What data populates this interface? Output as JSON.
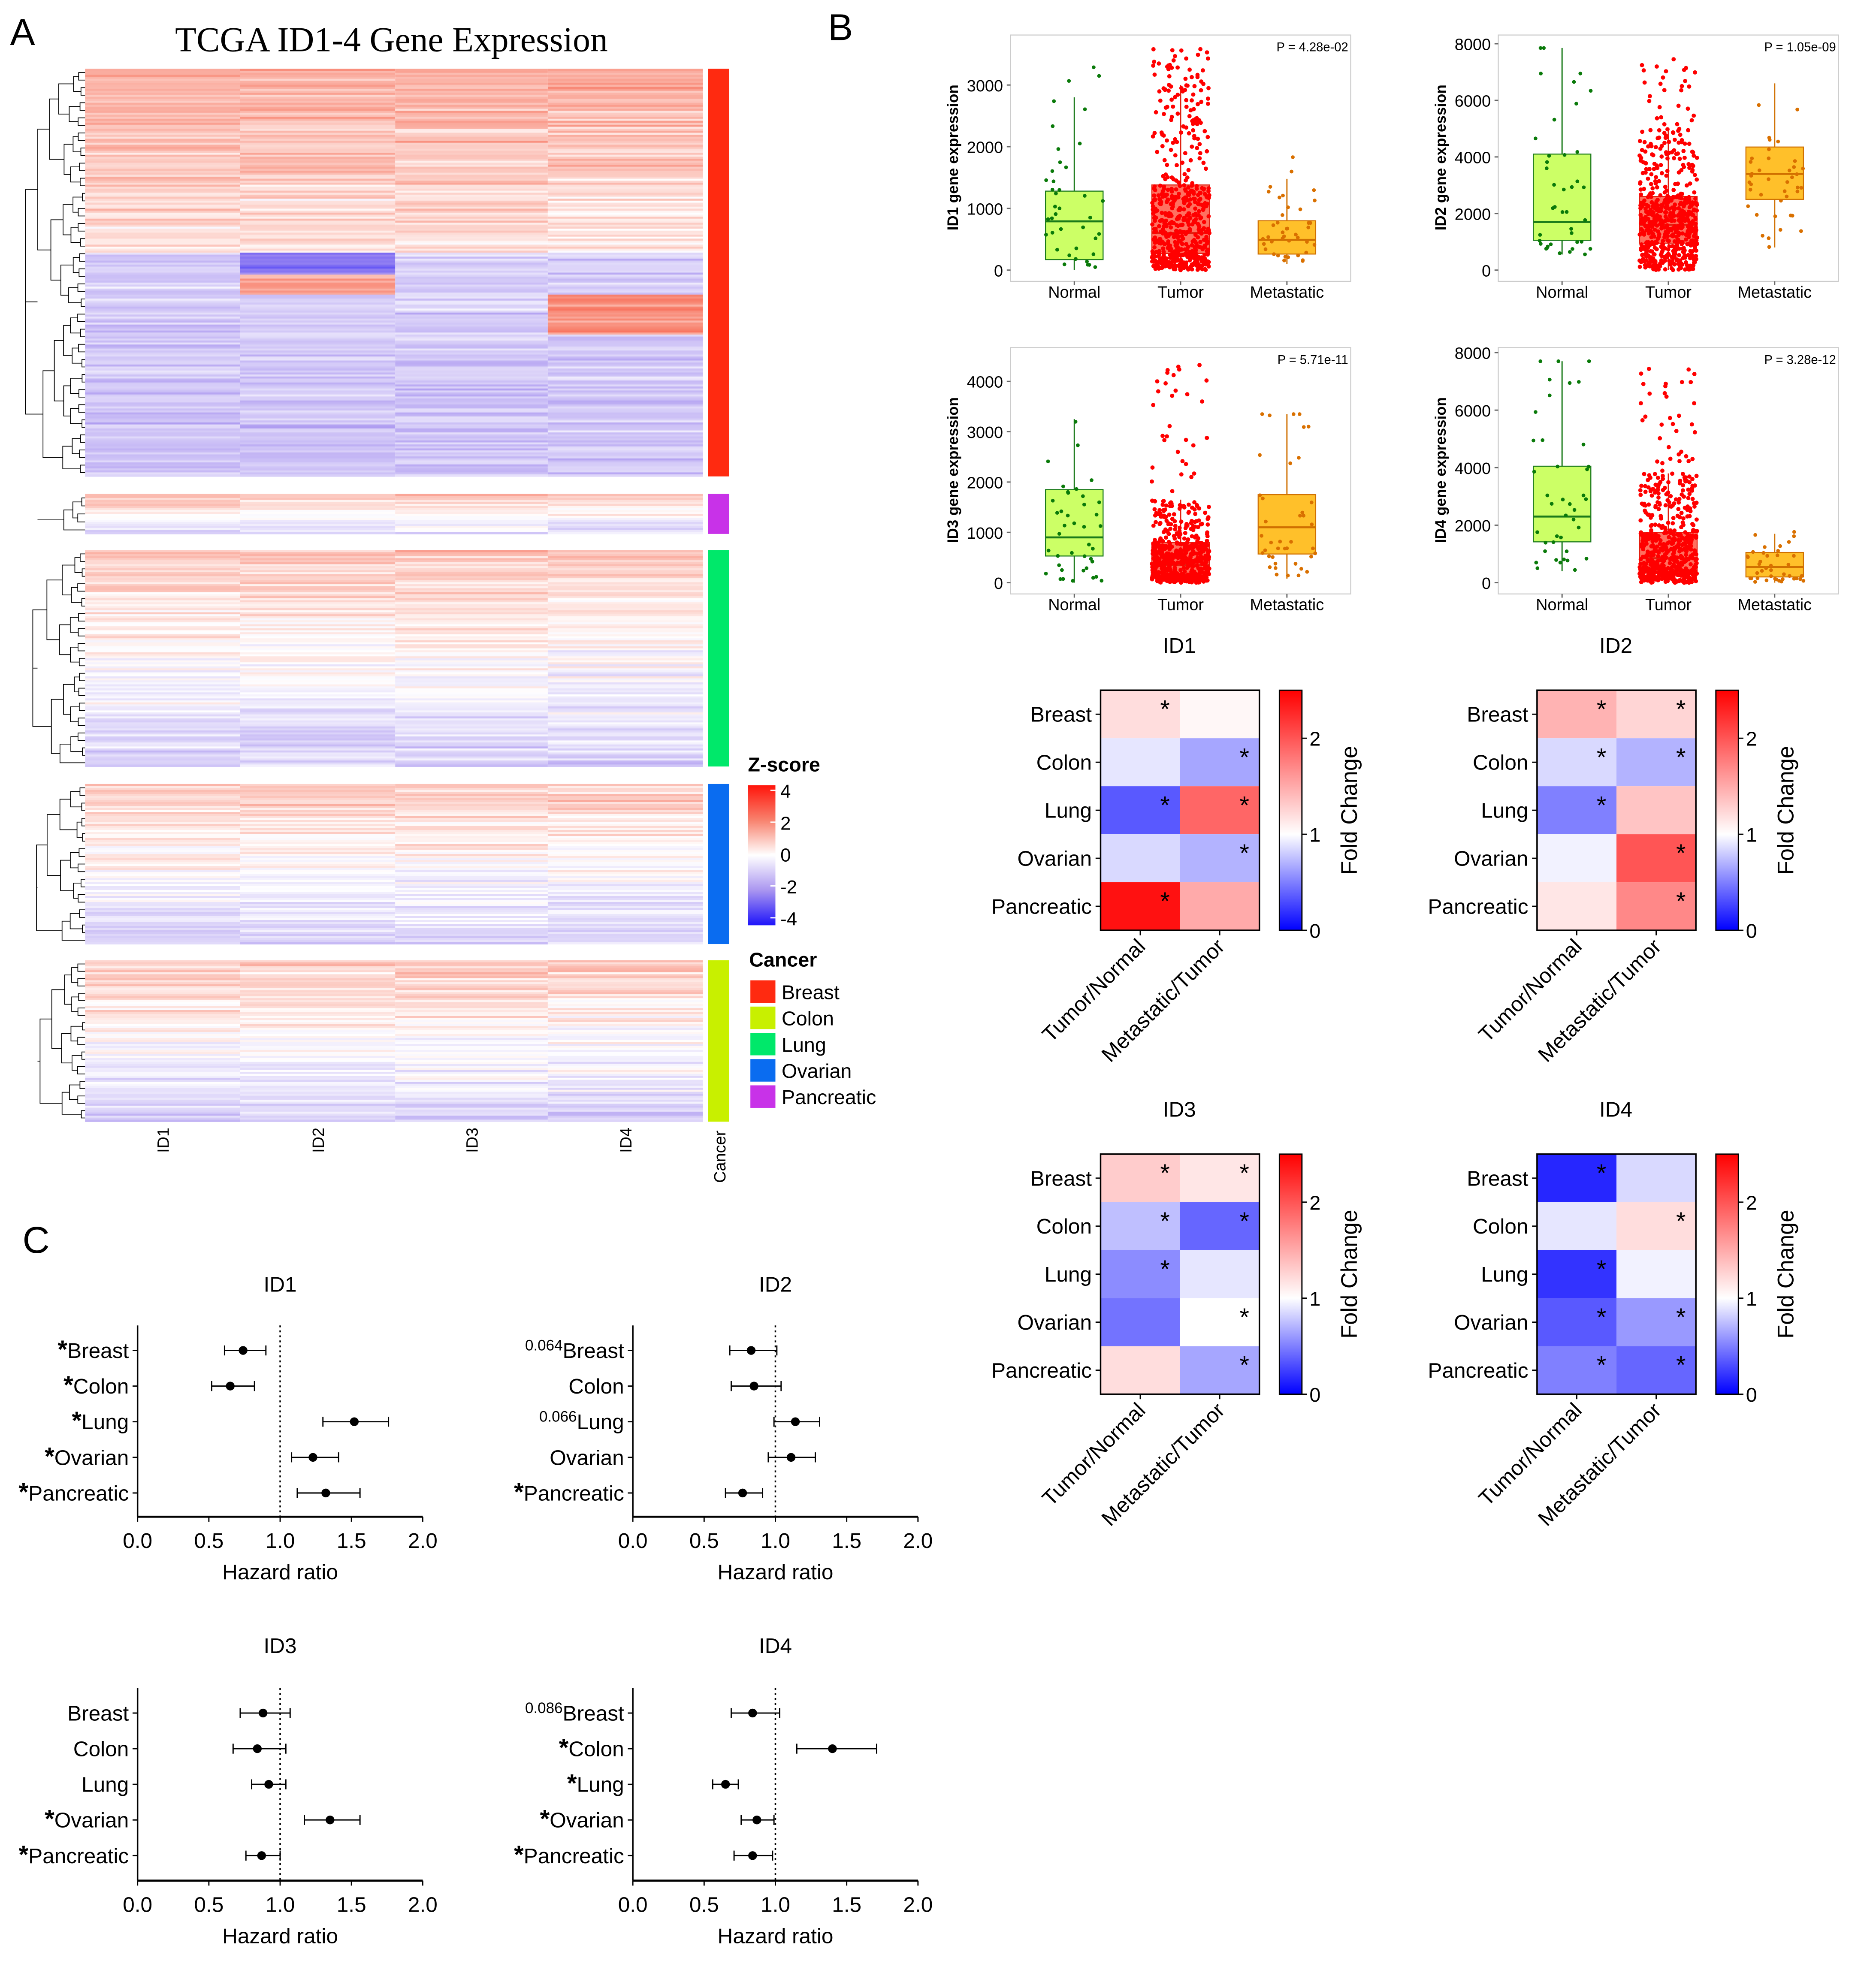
{
  "panel_letters": [
    "A",
    "B",
    "C"
  ],
  "colors": {
    "Breast": "#ff2a10",
    "Colon": "#c8f000",
    "Lung": "#00e86a",
    "Ovarian": "#0a6cf0",
    "Pancreatic": "#c832e8",
    "normal_box": "#ccff66",
    "normal_pt": "#0a7a0a",
    "tumor_box": "#ff7060",
    "tumor_pt": "#ff0000",
    "met_box": "#ffc02a",
    "met_pt": "#d97000",
    "fc_low": "#0000ff",
    "fc_mid": "#ffffff",
    "fc_high": "#ff0000"
  },
  "chart_data": [
    {
      "id": "A",
      "type": "heatmap",
      "title": "TCGA ID1-4  Gene Expression",
      "columns": [
        "ID1",
        "ID2",
        "ID3",
        "ID4"
      ],
      "annotation_label": "Cancer",
      "groups_in_order": [
        "Breast",
        "Pancreatic",
        "Lung",
        "Ovarian",
        "Colon"
      ],
      "legend_zscore": {
        "title": "Z-score",
        "ticks": [
          4,
          2,
          0,
          -2,
          -4
        ],
        "range": [
          -4,
          4
        ]
      },
      "legend_cancer": {
        "title": "Cancer",
        "items": [
          "Breast",
          "Colon",
          "Lung",
          "Ovarian",
          "Pancreatic"
        ]
      }
    },
    {
      "id": "B-box",
      "type": "box",
      "categories": [
        "Normal",
        "Tumor",
        "Metastatic"
      ],
      "panels": [
        {
          "gene": "ID1",
          "ylabel": "ID1 gene expression",
          "p": "P = 4.28e-02",
          "yticks": [
            0,
            1000,
            2000,
            3000
          ],
          "stats": [
            {
              "q1": 170,
              "median": 790,
              "q3": 1280,
              "lo": 0,
              "hi": 2800,
              "n": 40,
              "max": 3400
            },
            {
              "q1": 270,
              "median": 600,
              "q3": 1380,
              "lo": 0,
              "hi": 3000,
              "n": 600,
              "max": 3600
            },
            {
              "q1": 260,
              "median": 490,
              "q3": 800,
              "lo": 100,
              "hi": 1480,
              "n": 40,
              "max": 2100
            }
          ]
        },
        {
          "gene": "ID2",
          "ylabel": "ID2 gene expression",
          "p": "P = 1.05e-09",
          "yticks": [
            0,
            2000,
            4000,
            6000,
            8000
          ],
          "stats": [
            {
              "q1": 1050,
              "median": 1700,
              "q3": 4100,
              "lo": 550,
              "hi": 7850,
              "n": 40,
              "max": 7850
            },
            {
              "q1": 950,
              "median": 1600,
              "q3": 2600,
              "lo": 0,
              "hi": 5000,
              "n": 600,
              "max": 7500
            },
            {
              "q1": 2500,
              "median": 3400,
              "q3": 4350,
              "lo": 800,
              "hi": 6600,
              "n": 40,
              "max": 6600
            }
          ]
        },
        {
          "gene": "ID3",
          "ylabel": "ID3 gene expression",
          "p": "P = 5.71e-11",
          "yticks": [
            0,
            1000,
            2000,
            3000,
            4000
          ],
          "stats": [
            {
              "q1": 530,
              "median": 900,
              "q3": 1850,
              "lo": 0,
              "hi": 3250,
              "n": 40,
              "max": 4100
            },
            {
              "q1": 170,
              "median": 350,
              "q3": 800,
              "lo": 0,
              "hi": 1650,
              "n": 600,
              "max": 4350
            },
            {
              "q1": 570,
              "median": 1100,
              "q3": 1750,
              "lo": 80,
              "hi": 3350,
              "n": 40,
              "max": 3350
            }
          ]
        },
        {
          "gene": "ID4",
          "ylabel": "ID4 gene expression",
          "p": "P = 3.28e-12",
          "yticks": [
            0,
            2000,
            4000,
            6000,
            8000
          ],
          "stats": [
            {
              "q1": 1420,
              "median": 2300,
              "q3": 4050,
              "lo": 400,
              "hi": 7700,
              "n": 40,
              "max": 7700
            },
            {
              "q1": 350,
              "median": 850,
              "q3": 1750,
              "lo": 0,
              "hi": 3800,
              "n": 600,
              "max": 7650
            },
            {
              "q1": 200,
              "median": 550,
              "q3": 1050,
              "lo": 0,
              "hi": 1700,
              "n": 40,
              "max": 2400
            }
          ]
        }
      ]
    },
    {
      "id": "B-foldchange",
      "type": "heatmap",
      "rows": [
        "Breast",
        "Colon",
        "Lung",
        "Ovarian",
        "Pancreatic"
      ],
      "columns": [
        "Tumor/Normal",
        "Metastatic/Tumor"
      ],
      "colorbar": {
        "label": "Fold Change",
        "ticks": [
          0,
          1,
          2
        ],
        "range": [
          0,
          2.5
        ]
      },
      "panels": [
        {
          "gene": "ID1",
          "values": [
            [
              1.2,
              1.05
            ],
            [
              0.9,
              0.65
            ],
            [
              0.35,
              1.9
            ],
            [
              0.85,
              0.7
            ],
            [
              2.4,
              1.5
            ]
          ],
          "sig": [
            [
              1,
              0
            ],
            [
              0,
              1
            ],
            [
              1,
              1
            ],
            [
              0,
              1
            ],
            [
              1,
              0
            ]
          ]
        },
        {
          "gene": "ID2",
          "values": [
            [
              1.45,
              1.25
            ],
            [
              0.85,
              0.7
            ],
            [
              0.5,
              1.35
            ],
            [
              0.95,
              2.0
            ],
            [
              1.15,
              1.7
            ]
          ],
          "sig": [
            [
              1,
              1
            ],
            [
              1,
              1
            ],
            [
              1,
              0
            ],
            [
              0,
              1
            ],
            [
              0,
              1
            ]
          ]
        },
        {
          "gene": "ID3",
          "values": [
            [
              1.3,
              1.15
            ],
            [
              0.75,
              0.4
            ],
            [
              0.55,
              0.9
            ],
            [
              0.45,
              1.0
            ],
            [
              1.2,
              0.65
            ]
          ],
          "sig": [
            [
              1,
              1
            ],
            [
              1,
              1
            ],
            [
              1,
              0
            ],
            [
              0,
              1
            ],
            [
              0,
              1
            ]
          ]
        },
        {
          "gene": "ID4",
          "values": [
            [
              0.15,
              0.85
            ],
            [
              0.9,
              1.2
            ],
            [
              0.2,
              0.95
            ],
            [
              0.35,
              0.6
            ],
            [
              0.5,
              0.4
            ]
          ],
          "sig": [
            [
              1,
              0
            ],
            [
              0,
              1
            ],
            [
              1,
              0
            ],
            [
              1,
              1
            ],
            [
              1,
              1
            ]
          ]
        }
      ]
    },
    {
      "id": "C",
      "type": "forest",
      "xlabel": "Hazard ratio",
      "xticks": [
        "0.0",
        "0.5",
        "1.0",
        "1.5",
        "2.0"
      ],
      "xlim": [
        0,
        2
      ],
      "reference": 1.0,
      "panels": [
        {
          "gene": "ID1",
          "rows": [
            {
              "label": "Breast",
              "prefix": "*",
              "hr": 0.74,
              "lo": 0.61,
              "hi": 0.9
            },
            {
              "label": "Colon",
              "prefix": "*",
              "hr": 0.65,
              "lo": 0.52,
              "hi": 0.82
            },
            {
              "label": "Lung",
              "prefix": "*",
              "hr": 1.52,
              "lo": 1.3,
              "hi": 1.76
            },
            {
              "label": "Ovarian",
              "prefix": "*",
              "hr": 1.23,
              "lo": 1.08,
              "hi": 1.41
            },
            {
              "label": "Pancreatic",
              "prefix": "*",
              "hr": 1.32,
              "lo": 1.12,
              "hi": 1.56
            }
          ]
        },
        {
          "gene": "ID2",
          "rows": [
            {
              "label": "Breast",
              "prefix": "0.064",
              "hr": 0.83,
              "lo": 0.68,
              "hi": 1.01
            },
            {
              "label": "Colon",
              "prefix": "",
              "hr": 0.85,
              "lo": 0.69,
              "hi": 1.04
            },
            {
              "label": "Lung",
              "prefix": "0.066",
              "hr": 1.14,
              "lo": 0.99,
              "hi": 1.31
            },
            {
              "label": "Ovarian",
              "prefix": "",
              "hr": 1.11,
              "lo": 0.95,
              "hi": 1.28
            },
            {
              "label": "Pancreatic",
              "prefix": "*",
              "hr": 0.77,
              "lo": 0.65,
              "hi": 0.91
            }
          ]
        },
        {
          "gene": "ID3",
          "rows": [
            {
              "label": "Breast",
              "prefix": "",
              "hr": 0.88,
              "lo": 0.72,
              "hi": 1.07
            },
            {
              "label": "Colon",
              "prefix": "",
              "hr": 0.84,
              "lo": 0.67,
              "hi": 1.04
            },
            {
              "label": "Lung",
              "prefix": "",
              "hr": 0.92,
              "lo": 0.8,
              "hi": 1.04
            },
            {
              "label": "Ovarian",
              "prefix": "*",
              "hr": 1.35,
              "lo": 1.17,
              "hi": 1.56
            },
            {
              "label": "Pancreatic",
              "prefix": "*",
              "hr": 0.87,
              "lo": 0.76,
              "hi": 1.0
            }
          ]
        },
        {
          "gene": "ID4",
          "rows": [
            {
              "label": "Breast",
              "prefix": "0.086",
              "hr": 0.84,
              "lo": 0.69,
              "hi": 1.03
            },
            {
              "label": "Colon",
              "prefix": "*",
              "hr": 1.4,
              "lo": 1.15,
              "hi": 1.71
            },
            {
              "label": "Lung",
              "prefix": "*",
              "hr": 0.65,
              "lo": 0.56,
              "hi": 0.74
            },
            {
              "label": "Ovarian",
              "prefix": "*",
              "hr": 0.87,
              "lo": 0.76,
              "hi": 0.99
            },
            {
              "label": "Pancreatic",
              "prefix": "*",
              "hr": 0.84,
              "lo": 0.71,
              "hi": 0.98
            }
          ]
        }
      ]
    }
  ]
}
